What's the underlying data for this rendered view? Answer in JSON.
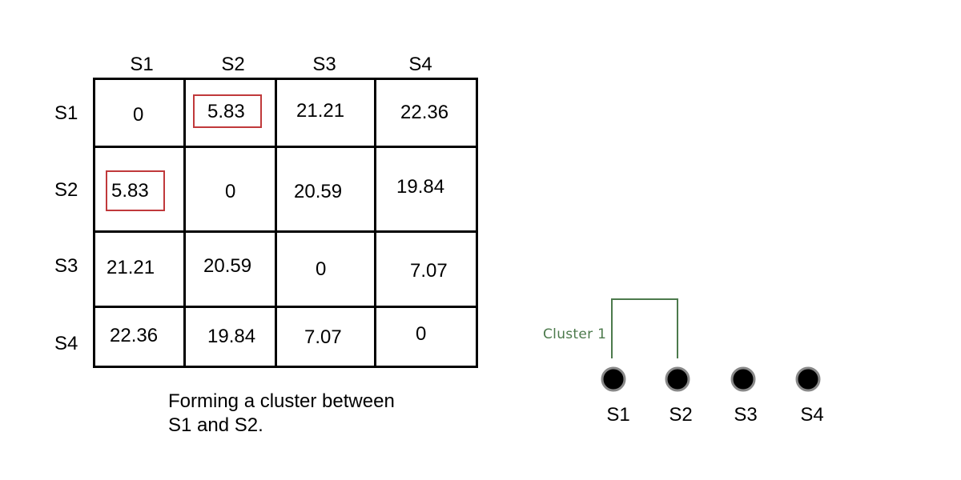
{
  "matrix": {
    "column_headers": [
      "S1",
      "S2",
      "S3",
      "S4"
    ],
    "row_headers": [
      "S1",
      "S2",
      "S3",
      "S4"
    ],
    "rows": [
      [
        "0",
        "5.83",
        "21.21",
        "22.36"
      ],
      [
        "5.83",
        "0",
        "20.59",
        "19.84"
      ],
      [
        "21.21",
        "20.59",
        "0",
        "7.07"
      ],
      [
        "22.36",
        "19.84",
        "7.07",
        "0"
      ]
    ],
    "highlighted_value": "5.83"
  },
  "caption": {
    "line1": "Forming a cluster between",
    "line2": "S1 and S2."
  },
  "dendrogram": {
    "leaves": [
      "S1",
      "S2",
      "S3",
      "S4"
    ],
    "cluster_label": "Cluster 1"
  },
  "colors": {
    "highlight": "#c0393b",
    "cluster": "#4c7a4c",
    "node": "#000000"
  }
}
